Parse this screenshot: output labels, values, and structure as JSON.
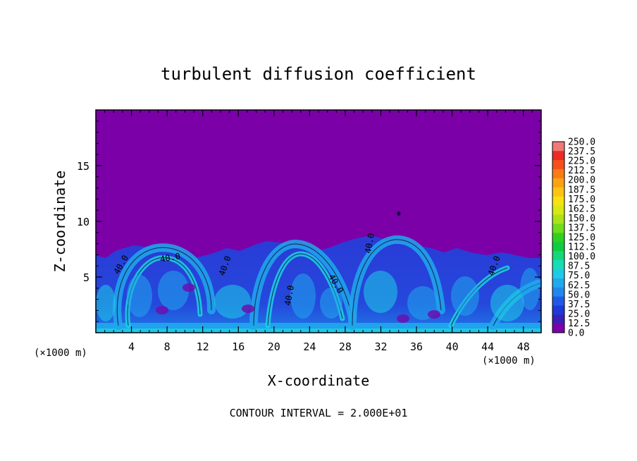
{
  "chart_data": {
    "type": "heatmap",
    "title": "turbulent diffusion coefficient",
    "xlabel": "X-coordinate",
    "ylabel": "Z-coordinate",
    "x_unit_left": "(×1000 m)",
    "x_unit_right": "(×1000 m)",
    "footer": "CONTOUR INTERVAL = 2.000E+01",
    "xlim": [
      0,
      50
    ],
    "ylim": [
      0,
      20
    ],
    "x_ticks": [
      4,
      8,
      12,
      16,
      20,
      24,
      28,
      32,
      36,
      40,
      44,
      48
    ],
    "x_tick_labels": [
      "4",
      "8",
      "12",
      "16",
      "20",
      "24",
      "28",
      "32",
      "36",
      "40",
      "44",
      "48"
    ],
    "y_ticks": [
      5,
      10,
      15
    ],
    "y_tick_labels": [
      "5",
      "10",
      "15"
    ],
    "colorbar": {
      "levels": [
        0.0,
        12.5,
        25.0,
        37.5,
        50.0,
        62.5,
        75.0,
        87.5,
        100.0,
        112.5,
        125.0,
        137.5,
        150.0,
        162.5,
        175.0,
        187.5,
        200.0,
        212.5,
        225.0,
        237.5,
        250.0
      ],
      "labels": [
        "0.0",
        "12.5",
        "25.0",
        "37.5",
        "50.0",
        "62.5",
        "75.0",
        "87.5",
        "100.0",
        "112.5",
        "125.0",
        "137.5",
        "150.0",
        "162.5",
        "175.0",
        "187.5",
        "200.0",
        "212.5",
        "225.0",
        "237.5",
        "250.0"
      ],
      "colors": [
        "#7b00a8",
        "#3a1fb8",
        "#2038d8",
        "#1f5ae6",
        "#1f88ea",
        "#20a9ee",
        "#1dcbe8",
        "#18dcb8",
        "#14d87a",
        "#10cc40",
        "#30d020",
        "#70dc1c",
        "#a8e418",
        "#d8e812",
        "#f6e212",
        "#fcc412",
        "#fca212",
        "#fa7a16",
        "#f4501c",
        "#ec2c24",
        "#f07878"
      ]
    },
    "contour_labels": [
      "40.0",
      "40.0",
      "40.0",
      "40.0",
      "40.0",
      "40.0",
      "40.0"
    ]
  }
}
